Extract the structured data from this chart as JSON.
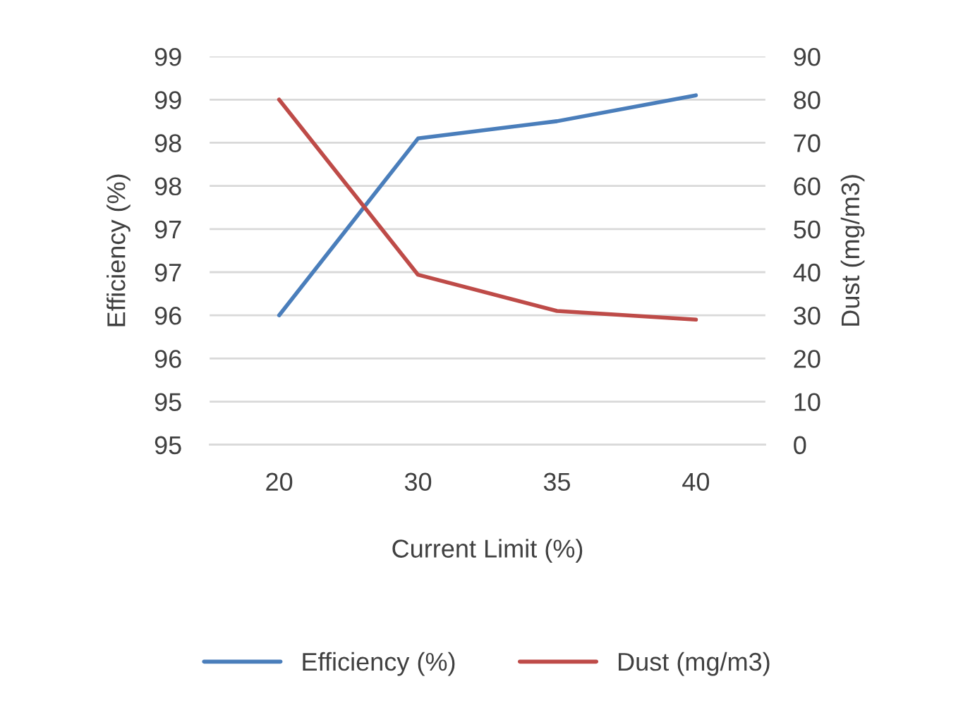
{
  "chart_data": {
    "type": "line",
    "xlabel": "Current Limit (%)",
    "ylabel": "Efficiency (%)",
    "y2label": "Dust (mg/m3)",
    "categories": [
      "20",
      "30",
      "35",
      "40"
    ],
    "series": [
      {
        "name": "Efficiency (%)",
        "color": "#4a7ebb",
        "values": [
          96.0,
          98.05,
          98.25,
          98.55
        ]
      },
      {
        "name": "Dust (mg/m3)",
        "color": "#be4b48",
        "axis": "y2",
        "values": [
          80,
          39.4,
          31,
          29
        ]
      }
    ],
    "ylim": [
      94.5,
      99
    ],
    "yticks": [
      {
        "value": 94.5,
        "label": "95"
      },
      {
        "value": 95,
        "label": "95"
      },
      {
        "value": 95.5,
        "label": "96"
      },
      {
        "value": 96,
        "label": "96"
      },
      {
        "value": 96.5,
        "label": "97"
      },
      {
        "value": 97,
        "label": "97"
      },
      {
        "value": 97.5,
        "label": "98"
      },
      {
        "value": 98,
        "label": "98"
      },
      {
        "value": 98.5,
        "label": "99"
      },
      {
        "value": 99,
        "label": "99"
      }
    ],
    "y2lim": [
      0,
      90
    ],
    "y2ticks": [
      0,
      10,
      20,
      30,
      40,
      50,
      60,
      70,
      80,
      90
    ],
    "grid": "y",
    "legend": "bottom",
    "marker": "none",
    "line_style": "solid"
  }
}
